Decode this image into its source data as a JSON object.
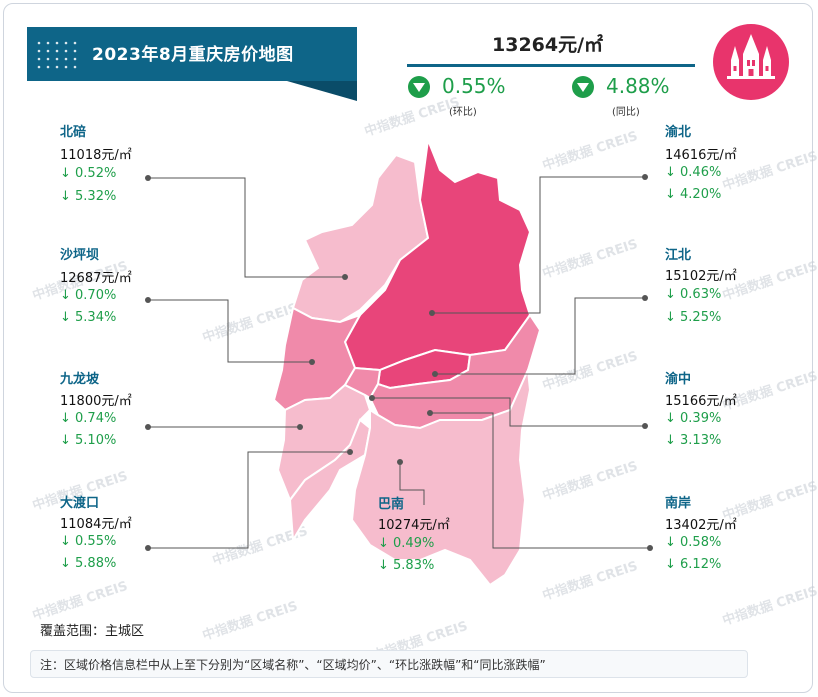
{
  "title": "2023年8月重庆房价地图",
  "summary": {
    "avg_price": "13264元/㎡",
    "mom_value": "0.55%",
    "mom_label": "(环比)",
    "yoy_value": "4.88%",
    "yoy_label": "(同比)"
  },
  "districts": {
    "beibei": {
      "name": "北碚",
      "price": "11018元/㎡",
      "mom": "↓ 0.52%",
      "yoy": "↓ 5.32%"
    },
    "shapingba": {
      "name": "沙坪坝",
      "price": "12687元/㎡",
      "mom": "↓ 0.70%",
      "yoy": "↓ 5.34%"
    },
    "jiulongpo": {
      "name": "九龙坡",
      "price": "11800元/㎡",
      "mom": "↓ 0.74%",
      "yoy": "↓ 5.10%"
    },
    "dadukou": {
      "name": "大渡口",
      "price": "11084元/㎡",
      "mom": "↓ 0.55%",
      "yoy": "↓ 5.88%"
    },
    "yubei": {
      "name": "渝北",
      "price": "14616元/㎡",
      "mom": "↓ 0.46%",
      "yoy": "↓ 4.20%"
    },
    "jiangbei": {
      "name": "江北",
      "price": "15102元/㎡",
      "mom": "↓ 0.63%",
      "yoy": "↓ 5.25%"
    },
    "yuzhong": {
      "name": "渝中",
      "price": "15166元/㎡",
      "mom": "↓ 0.39%",
      "yoy": "↓ 3.13%"
    },
    "nanan": {
      "name": "南岸",
      "price": "13402元/㎡",
      "mom": "↓ 0.58%",
      "yoy": "↓ 6.12%"
    },
    "banan": {
      "name": "巴南",
      "price": "10274元/㎡",
      "mom": "↓ 0.49%",
      "yoy": "↓ 5.83%"
    }
  },
  "coverage": "覆盖范围：主城区",
  "note": "注：区域价格信息栏中从上至下分别为“区域名称”、“区域均价”、“环比涨跌幅”和“同比涨跌幅”",
  "watermark": "中指数据 CREIS",
  "colors": {
    "banner": "#0e6588",
    "accent_green": "#1e9e4a",
    "district_dark": "#e8457a",
    "district_mid": "#f08aaa",
    "district_light": "#f6bccd",
    "logo": "#e8346c"
  },
  "icons": {
    "change_down": "down-triangle-circle-icon",
    "logo": "cathedral-skyline-icon"
  }
}
